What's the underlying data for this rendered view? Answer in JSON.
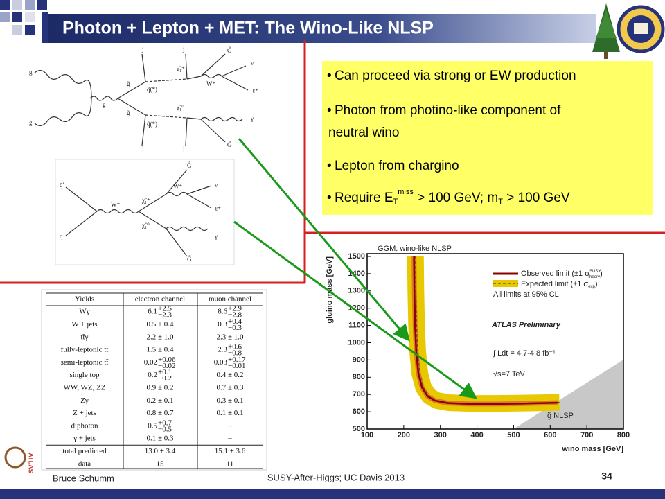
{
  "header": {
    "title": "Photon + Lepton + MET: The Wino-Like NLSP"
  },
  "bullets": [
    [
      "Can proceed via strong or EW production"
    ],
    [
      "Photon from photino-like component of",
      "neutral wino"
    ],
    [
      "Lepton from chargino"
    ],
    [
      "Require E",
      "T",
      "miss",
      " > 100 GeV; m",
      "T",
      " > 100 GeV"
    ]
  ],
  "diagram1": {
    "labels": [
      "g",
      "g",
      "g",
      "g̃",
      "g̃",
      "q̃(*)",
      "q̃(*)",
      "j",
      "j",
      "j",
      "j",
      "χ̃₁⁺",
      "χ̃₁⁰",
      "W⁺",
      "ν",
      "ℓ⁺",
      "γ",
      "G̃",
      "G̃"
    ]
  },
  "diagram2": {
    "labels": [
      "q̄'",
      "q",
      "W⁺",
      "χ̃₁⁺",
      "χ̃₁⁰",
      "W⁺",
      "ν",
      "ℓ⁺",
      "γ",
      "G̃",
      "G̃"
    ]
  },
  "table": {
    "header": [
      "Yields",
      "electron channel",
      "muon channel"
    ],
    "rows": [
      [
        "Wγ",
        {
          "v": "6.1",
          "up": "+2.5",
          "dn": "−2.3"
        },
        {
          "v": "8.6",
          "up": "+2.9",
          "dn": "−2.8"
        }
      ],
      [
        "W + jets",
        "0.5 ± 0.4",
        {
          "v": "0.3",
          "up": "+0.4",
          "dn": "−0.3"
        }
      ],
      [
        "tt̄γ",
        "2.2 ± 1.0",
        "2.3 ± 1.0"
      ],
      [
        "fully-leptonic tt̄",
        "1.5 ± 0.4",
        {
          "v": "2.3",
          "up": "+0.6",
          "dn": "−0.8"
        }
      ],
      [
        "semi-leptonic tt̄",
        {
          "v": "0.02",
          "up": "+0.06",
          "dn": "−0.02"
        },
        {
          "v": "0.03",
          "up": "+0.17",
          "dn": "−0.01"
        }
      ],
      [
        "single top",
        {
          "v": "0.2",
          "up": "+0.1",
          "dn": "−0.2"
        },
        "0.4 ± 0.2"
      ],
      [
        "WW, WZ, ZZ",
        "0.9 ± 0.2",
        "0.7 ± 0.3"
      ],
      [
        "Zγ",
        "0.2 ± 0.1",
        "0.3 ± 0.1"
      ],
      [
        "Z + jets",
        "0.8 ± 0.7",
        "0.1 ± 0.1"
      ],
      [
        "diphoton",
        {
          "v": "0.5",
          "up": "+0.7",
          "dn": "−0.5"
        },
        "–"
      ],
      [
        "γ + jets",
        "0.1 ± 0.3",
        "–"
      ],
      [
        "total predicted",
        "13.0 ± 3.4",
        "15.1 ± 3.6"
      ],
      [
        "data",
        "15",
        "11"
      ]
    ]
  },
  "plot": {
    "title": "GGM: wino-like NLSP",
    "xlabel": "wino mass [GeV]",
    "ylabel": "gluino mass [GeV]",
    "xlim": [
      100,
      800
    ],
    "ylim": [
      500,
      1500
    ],
    "xticks": [
      100,
      200,
      300,
      400,
      500,
      600,
      700,
      800
    ],
    "yticks": [
      500,
      600,
      700,
      800,
      900,
      1000,
      1100,
      1200,
      1300,
      1400,
      1500
    ],
    "legend": {
      "observed": "Observed limit (±1 σ",
      "observed_sup": "SUSY",
      "observed_sub": "theory",
      "expected": "Expected limit (±1 σ",
      "expected_sub": "exp",
      "close": ")",
      "cl": "All limits at 95% CL"
    },
    "atlas": "ATLAS Preliminary",
    "lumi": "∫ Ldt = 4.7-4.8 fb⁻¹",
    "energy": "√s=7 TeV",
    "region": "g̃ NLSP",
    "series": [
      {
        "name": "Observed",
        "color": "#8b0000",
        "x": [
          228,
          229,
          231,
          234,
          240,
          250,
          265,
          285,
          320,
          380,
          450,
          520,
          580,
          620
        ],
        "y": [
          1500,
          1300,
          1100,
          950,
          820,
          740,
          690,
          665,
          650,
          645,
          645,
          647,
          650,
          652
        ]
      },
      {
        "name": "Expected",
        "color": "#e8c800",
        "x": [
          232,
          233,
          235,
          238,
          244,
          254,
          270,
          290,
          325,
          385,
          455,
          525,
          585,
          625
        ],
        "y": [
          1500,
          1300,
          1100,
          950,
          820,
          740,
          690,
          665,
          652,
          648,
          648,
          650,
          652,
          654
        ]
      }
    ]
  },
  "footer": {
    "author": "Bruce Schumm",
    "event": "SUSY-After-Higgs; UC Davis 2013",
    "page": "34",
    "logo": "ATLAS"
  }
}
